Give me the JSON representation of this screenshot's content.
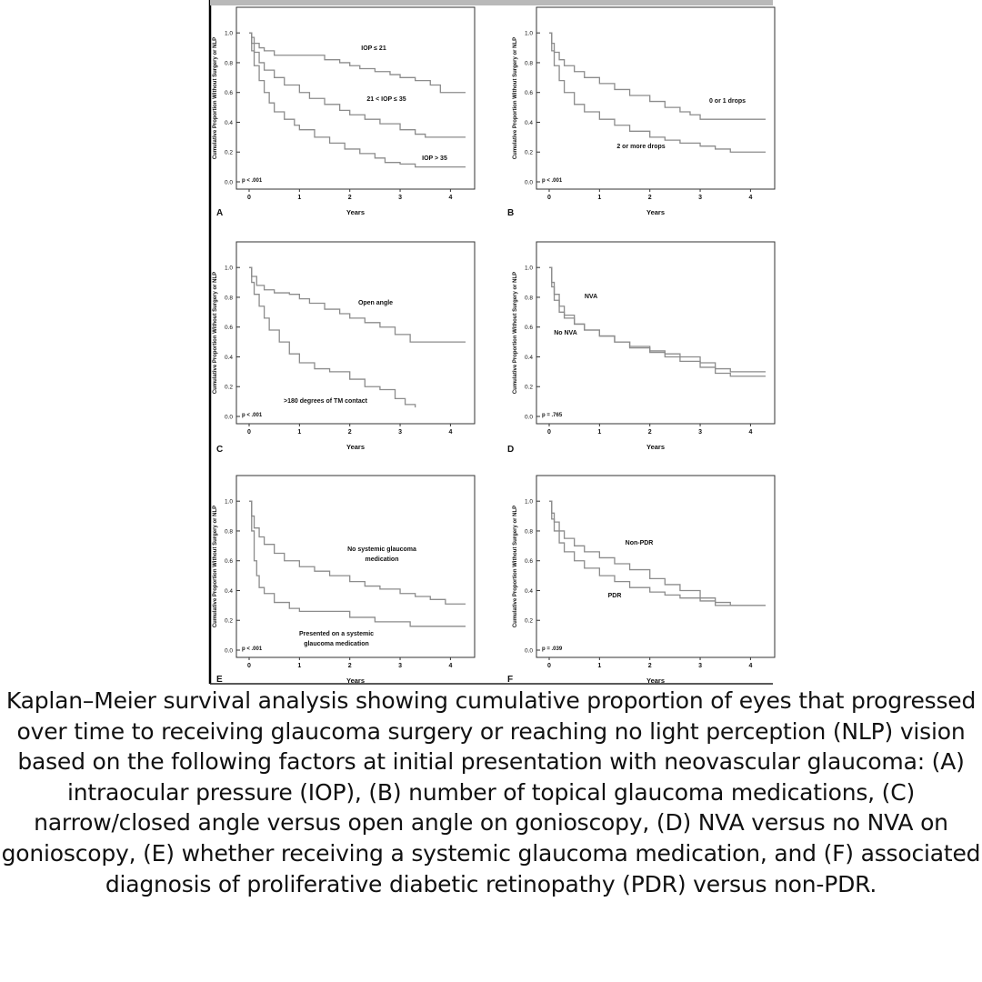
{
  "chart_data": [
    {
      "type": "line",
      "panel_label": "A",
      "title": "",
      "xlabel": "Years",
      "ylabel": "Cumulative Proportion Without Surgery or NLP",
      "xlim": [
        0,
        4.3
      ],
      "ylim": [
        0,
        1.05
      ],
      "xticks": [
        "0",
        "1",
        "2",
        "3",
        "4"
      ],
      "yticks": [
        "0.0",
        "0.2",
        "0.4",
        "0.6",
        "0.8",
        "1.0"
      ],
      "pvalue": "p < .001",
      "series": [
        {
          "name": "IOP ≤ 21",
          "x": [
            0,
            0.05,
            0.1,
            0.2,
            0.3,
            0.5,
            0.8,
            1.0,
            1.3,
            1.5,
            1.8,
            2.0,
            2.2,
            2.5,
            2.8,
            3.0,
            3.3,
            3.6,
            3.8,
            4.3
          ],
          "y": [
            1.0,
            0.97,
            0.93,
            0.9,
            0.88,
            0.85,
            0.85,
            0.85,
            0.85,
            0.82,
            0.8,
            0.78,
            0.76,
            0.74,
            0.72,
            0.7,
            0.68,
            0.65,
            0.6,
            0.6
          ]
        },
        {
          "name": "21 < IOP ≤ 35",
          "x": [
            0,
            0.05,
            0.1,
            0.2,
            0.3,
            0.5,
            0.7,
            1.0,
            1.2,
            1.5,
            1.8,
            2.0,
            2.3,
            2.6,
            3.0,
            3.3,
            3.5,
            4.3
          ],
          "y": [
            1.0,
            0.93,
            0.87,
            0.8,
            0.75,
            0.7,
            0.65,
            0.6,
            0.56,
            0.52,
            0.48,
            0.45,
            0.42,
            0.39,
            0.35,
            0.32,
            0.3,
            0.3
          ]
        },
        {
          "name": "IOP > 35",
          "x": [
            0,
            0.05,
            0.1,
            0.2,
            0.3,
            0.4,
            0.5,
            0.7,
            0.9,
            1.0,
            1.3,
            1.6,
            1.9,
            2.2,
            2.5,
            2.7,
            3.0,
            3.3,
            4.3
          ],
          "y": [
            1.0,
            0.88,
            0.78,
            0.68,
            0.6,
            0.53,
            0.47,
            0.42,
            0.38,
            0.35,
            0.3,
            0.26,
            0.22,
            0.19,
            0.16,
            0.13,
            0.12,
            0.1,
            0.1
          ]
        }
      ],
      "annotations": [
        "IOP ≤ 21",
        "21 < IOP ≤ 35",
        "IOP > 35"
      ]
    },
    {
      "type": "line",
      "panel_label": "B",
      "title": "",
      "xlabel": "Years",
      "ylabel": "Cumulative Proportion Without Surgery or NLP",
      "xlim": [
        0,
        4.3
      ],
      "ylim": [
        0,
        1.05
      ],
      "xticks": [
        "0",
        "1",
        "2",
        "3",
        "4"
      ],
      "yticks": [
        "0.0",
        "0.2",
        "0.4",
        "0.6",
        "0.8",
        "1.0"
      ],
      "pvalue": "p < .001",
      "series": [
        {
          "name": "0 or 1 drops",
          "x": [
            0,
            0.05,
            0.1,
            0.2,
            0.3,
            0.5,
            0.7,
            1.0,
            1.3,
            1.6,
            2.0,
            2.3,
            2.6,
            2.8,
            3.0,
            4.3
          ],
          "y": [
            1.0,
            0.93,
            0.87,
            0.82,
            0.78,
            0.74,
            0.7,
            0.66,
            0.62,
            0.58,
            0.54,
            0.5,
            0.47,
            0.45,
            0.42,
            0.42
          ]
        },
        {
          "name": "2 or more drops",
          "x": [
            0,
            0.05,
            0.1,
            0.2,
            0.3,
            0.5,
            0.7,
            1.0,
            1.3,
            1.6,
            2.0,
            2.3,
            2.6,
            3.0,
            3.3,
            3.6,
            4.3
          ],
          "y": [
            1.0,
            0.88,
            0.78,
            0.68,
            0.6,
            0.52,
            0.47,
            0.42,
            0.38,
            0.34,
            0.3,
            0.28,
            0.26,
            0.24,
            0.22,
            0.2,
            0.2
          ]
        }
      ],
      "annotations": [
        "0 or 1 drops",
        "2 or more drops"
      ]
    },
    {
      "type": "line",
      "panel_label": "C",
      "title": "",
      "xlabel": "Years",
      "ylabel": "Cumulative Proportion Without Surgery or NLP",
      "xlim": [
        0,
        4.3
      ],
      "ylim": [
        0,
        1.05
      ],
      "xticks": [
        "0",
        "1",
        "2",
        "3",
        "4"
      ],
      "yticks": [
        "0.0",
        "0.2",
        "0.4",
        "0.6",
        "0.8",
        "1.0"
      ],
      "pvalue": "p < .001",
      "series": [
        {
          "name": "Open angle",
          "x": [
            0,
            0.05,
            0.15,
            0.3,
            0.5,
            0.8,
            1.0,
            1.2,
            1.5,
            1.8,
            2.0,
            2.3,
            2.6,
            2.9,
            3.2,
            4.3
          ],
          "y": [
            1.0,
            0.94,
            0.88,
            0.85,
            0.83,
            0.82,
            0.79,
            0.76,
            0.72,
            0.69,
            0.66,
            0.63,
            0.6,
            0.55,
            0.5,
            0.5
          ]
        },
        {
          "name": ">180 degrees of TM contact",
          "x": [
            0,
            0.05,
            0.1,
            0.2,
            0.3,
            0.4,
            0.6,
            0.8,
            1.0,
            1.3,
            1.6,
            2.0,
            2.3,
            2.6,
            2.9,
            3.1,
            3.3
          ],
          "y": [
            1.0,
            0.9,
            0.82,
            0.74,
            0.66,
            0.58,
            0.5,
            0.42,
            0.36,
            0.32,
            0.3,
            0.25,
            0.2,
            0.18,
            0.12,
            0.08,
            0.06
          ]
        }
      ],
      "annotations": [
        "Open angle",
        ">180 degrees of TM contact"
      ]
    },
    {
      "type": "line",
      "panel_label": "D",
      "title": "",
      "xlabel": "Years",
      "ylabel": "Cumulative Proportion Without Surgery or NLP",
      "xlim": [
        0,
        4.3
      ],
      "ylim": [
        0,
        1.05
      ],
      "xticks": [
        "0",
        "1",
        "2",
        "3",
        "4"
      ],
      "yticks": [
        "0.0",
        "0.2",
        "0.4",
        "0.6",
        "0.8",
        "1.0"
      ],
      "pvalue": "p = .765",
      "series": [
        {
          "name": "NVA",
          "x": [
            0,
            0.05,
            0.1,
            0.2,
            0.3,
            0.5,
            0.7,
            1.0,
            1.3,
            1.6,
            2.0,
            2.3,
            2.6,
            3.0,
            3.3,
            3.6,
            4.3
          ],
          "y": [
            1.0,
            0.9,
            0.82,
            0.74,
            0.68,
            0.62,
            0.58,
            0.54,
            0.5,
            0.47,
            0.44,
            0.42,
            0.4,
            0.36,
            0.32,
            0.3,
            0.3
          ]
        },
        {
          "name": "No NVA",
          "x": [
            0,
            0.05,
            0.1,
            0.2,
            0.3,
            0.5,
            0.7,
            1.0,
            1.3,
            1.6,
            2.0,
            2.3,
            2.6,
            3.0,
            3.3,
            3.6,
            4.3
          ],
          "y": [
            1.0,
            0.87,
            0.78,
            0.7,
            0.66,
            0.62,
            0.58,
            0.54,
            0.5,
            0.46,
            0.43,
            0.4,
            0.37,
            0.33,
            0.29,
            0.27,
            0.27
          ]
        }
      ],
      "annotations": [
        "NVA",
        "No NVA"
      ]
    },
    {
      "type": "line",
      "panel_label": "E",
      "title": "",
      "xlabel": "Years",
      "ylabel": "Cumulative Proportion Without Surgery or NLP",
      "xlim": [
        0,
        4.3
      ],
      "ylim": [
        0,
        1.05
      ],
      "xticks": [
        "0",
        "1",
        "2",
        "3",
        "4"
      ],
      "yticks": [
        "0.0",
        "0.2",
        "0.4",
        "0.6",
        "0.8",
        "1.0"
      ],
      "pvalue": "p < .001",
      "series": [
        {
          "name": "No systemic glaucoma medication",
          "x": [
            0,
            0.05,
            0.1,
            0.2,
            0.3,
            0.5,
            0.7,
            1.0,
            1.3,
            1.6,
            2.0,
            2.3,
            2.6,
            3.0,
            3.3,
            3.6,
            3.9,
            4.3
          ],
          "y": [
            1.0,
            0.9,
            0.82,
            0.76,
            0.71,
            0.65,
            0.6,
            0.56,
            0.53,
            0.5,
            0.46,
            0.43,
            0.41,
            0.38,
            0.36,
            0.34,
            0.31,
            0.31
          ]
        },
        {
          "name": "Presented on a systemic glaucoma medication",
          "x": [
            0,
            0.05,
            0.1,
            0.15,
            0.2,
            0.3,
            0.5,
            0.8,
            1.0,
            1.5,
            2.0,
            2.5,
            2.9,
            3.2,
            4.3
          ],
          "y": [
            1.0,
            0.8,
            0.6,
            0.5,
            0.42,
            0.38,
            0.32,
            0.28,
            0.26,
            0.26,
            0.22,
            0.19,
            0.19,
            0.16,
            0.16
          ]
        }
      ],
      "annotations": [
        "No systemic glaucoma medication",
        "Presented on a systemic glaucoma medication"
      ]
    },
    {
      "type": "line",
      "panel_label": "F",
      "title": "",
      "xlabel": "Years",
      "ylabel": "Cumulative Proportion Without Surgery or NLP",
      "xlim": [
        0,
        4.3
      ],
      "ylim": [
        0,
        1.05
      ],
      "xticks": [
        "0",
        "1",
        "2",
        "3",
        "4"
      ],
      "yticks": [
        "0.0",
        "0.2",
        "0.4",
        "0.6",
        "0.8",
        "1.0"
      ],
      "pvalue": "p = .039",
      "series": [
        {
          "name": "Non-PDR",
          "x": [
            0,
            0.05,
            0.1,
            0.2,
            0.3,
            0.5,
            0.7,
            1.0,
            1.3,
            1.6,
            2.0,
            2.3,
            2.6,
            3.0,
            3.3,
            3.6,
            4.3
          ],
          "y": [
            1.0,
            0.92,
            0.86,
            0.8,
            0.75,
            0.7,
            0.66,
            0.62,
            0.58,
            0.54,
            0.48,
            0.44,
            0.4,
            0.35,
            0.32,
            0.3,
            0.3
          ]
        },
        {
          "name": "PDR",
          "x": [
            0,
            0.05,
            0.1,
            0.2,
            0.3,
            0.5,
            0.7,
            1.0,
            1.3,
            1.6,
            2.0,
            2.3,
            2.6,
            3.0,
            3.3,
            4.3
          ],
          "y": [
            1.0,
            0.88,
            0.8,
            0.72,
            0.66,
            0.6,
            0.55,
            0.5,
            0.46,
            0.42,
            0.39,
            0.37,
            0.35,
            0.33,
            0.3,
            0.3
          ]
        }
      ],
      "annotations": [
        "Non-PDR",
        "PDR"
      ]
    }
  ],
  "colors": {
    "line": "#8c8c8c",
    "axis": "#333333",
    "text": "#111111",
    "background": "#ffffff"
  },
  "caption": "Kaplan–Meier survival analysis showing cumulative proportion of eyes that progressed over time to receiving glaucoma surgery or reaching no light perception (NLP) vision based on the following factors at initial presentation with neovascular glaucoma: (A) intraocular pressure (IOP), (B) number of topical glaucoma medications, (C) narrow/closed angle versus open angle on gonioscopy, (D) NVA versus no NVA on gonioscopy, (E) whether receiving a systemic glaucoma medication, and (F) associated diagnosis of proliferative diabetic retinopathy (PDR) versus non-PDR."
}
